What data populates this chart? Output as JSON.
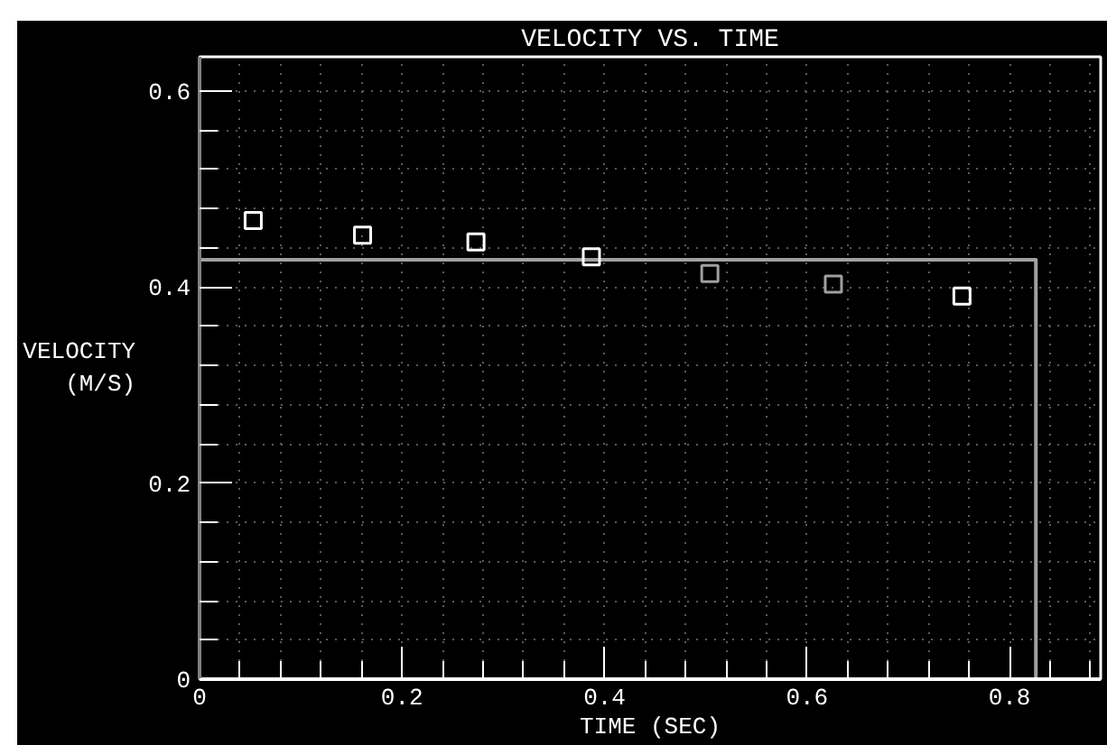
{
  "chart_data": {
    "type": "scatter",
    "title": "VELOCITY VS. TIME",
    "xlabel": "TIME (SEC)",
    "ylabel": "VELOCITY (M/S)",
    "series": [
      {
        "type": "line",
        "x": [
          0,
          0.826,
          0.826
        ],
        "values": [
          0.428,
          0.428,
          0
        ],
        "color": "#a0a0a0"
      },
      {
        "marker": "square",
        "x": [
          0.053,
          0.161,
          0.273,
          0.387,
          0.504,
          0.626,
          0.753
        ],
        "values": [
          0.468,
          0.453,
          0.446,
          0.431,
          0.414,
          0.403,
          0.391
        ],
        "colors": [
          "#ffffff",
          "#ffffff",
          "#ffffff",
          "#ffffff",
          "#a0a0a0",
          "#a0a0a0",
          "#ffffff"
        ]
      }
    ],
    "grid": true,
    "xlim": [
      0,
      0.89
    ],
    "ylim": [
      0,
      0.635
    ],
    "xticks": [
      0,
      {
        "value": 0.04,
        "label": null
      },
      {
        "value": 0.08,
        "label": null
      },
      {
        "value": 0.12,
        "label": null
      },
      {
        "value": 0.16,
        "label": null
      },
      0.2,
      {
        "value": 0.24,
        "label": null
      },
      {
        "value": 0.28,
        "label": null
      },
      {
        "value": 0.32,
        "label": null
      },
      {
        "value": 0.36,
        "label": null
      },
      0.4,
      {
        "value": 0.44,
        "label": null
      },
      {
        "value": 0.48,
        "label": null
      },
      {
        "value": 0.52,
        "label": null
      },
      {
        "value": 0.56,
        "label": null
      },
      0.6,
      {
        "value": 0.64,
        "label": null
      },
      {
        "value": 0.68,
        "label": null
      },
      {
        "value": 0.72,
        "label": null
      },
      {
        "value": 0.76,
        "label": null
      },
      0.8,
      {
        "value": 0.84,
        "label": null
      },
      {
        "value": 0.88,
        "label": null
      }
    ],
    "yticks": [
      0,
      {
        "value": 0.04,
        "label": null
      },
      {
        "value": 0.08,
        "label": null
      },
      {
        "value": 0.12,
        "label": null
      },
      {
        "value": 0.16,
        "label": null
      },
      0.2,
      {
        "value": 0.24,
        "label": null
      },
      {
        "value": 0.28,
        "label": null
      },
      {
        "value": 0.32,
        "label": null
      },
      {
        "value": 0.36,
        "label": null
      },
      0.4,
      {
        "value": 0.44,
        "label": null
      },
      {
        "value": 0.48,
        "label": null
      },
      {
        "value": 0.52,
        "label": null
      },
      {
        "value": 0.56,
        "label": null
      },
      0.6
    ]
  }
}
